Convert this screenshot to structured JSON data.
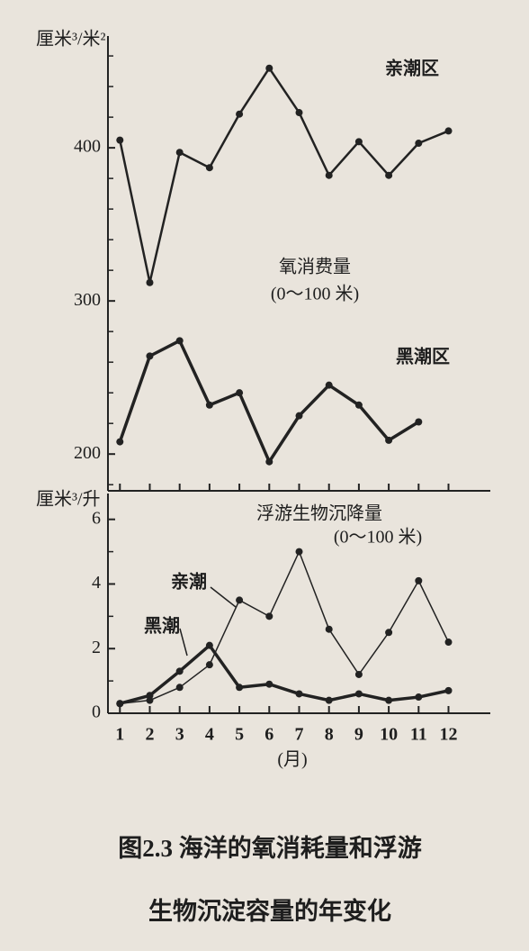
{
  "chart_data": [
    {
      "type": "line",
      "ylabel": "厘米³/米²",
      "title": "氧消费量",
      "subtitle": "(0～100 米)",
      "x": [
        1,
        2,
        3,
        4,
        5,
        6,
        7,
        8,
        9,
        10,
        11,
        12
      ],
      "xlim": [
        0.6,
        13.4
      ],
      "ylim": [
        176,
        473
      ],
      "yticks": [
        200,
        300,
        400
      ],
      "yticks_minor": [
        180,
        220,
        240,
        260,
        280,
        320,
        340,
        360,
        380,
        420,
        440,
        460
      ],
      "series": [
        {
          "name": "亲潮区",
          "color": "#222222",
          "width": 2.5,
          "values": [
            405,
            312,
            397,
            387,
            422,
            452,
            423,
            382,
            404,
            382,
            403,
            411
          ]
        },
        {
          "name": "黑潮区",
          "color": "#222222",
          "width": 3.5,
          "values": [
            208,
            264,
            274,
            232,
            240,
            195,
            225,
            245,
            232,
            209,
            221,
            null
          ]
        }
      ]
    },
    {
      "type": "line",
      "ylabel": "厘米³/升",
      "title": "浮游生物沉降量",
      "subtitle": "(0～100 米)",
      "xlabel": "(月)",
      "x": [
        1,
        2,
        3,
        4,
        5,
        6,
        7,
        8,
        9,
        10,
        11,
        12
      ],
      "xlim": [
        0.6,
        13.4
      ],
      "xticks": [
        1,
        2,
        3,
        4,
        5,
        6,
        7,
        8,
        9,
        10,
        11,
        12
      ],
      "ylim": [
        0,
        6.8
      ],
      "yticks": [
        0,
        2,
        4,
        6
      ],
      "yticks_minor": [
        1,
        3,
        5
      ],
      "series": [
        {
          "name": "亲潮",
          "color": "#222222",
          "width": 1.5,
          "values": [
            0.3,
            0.4,
            0.8,
            1.5,
            3.5,
            3.0,
            5.0,
            2.6,
            1.2,
            2.5,
            4.1,
            2.2
          ]
        },
        {
          "name": "黑潮",
          "color": "#222222",
          "width": 3.5,
          "values": [
            0.3,
            0.55,
            1.3,
            2.1,
            0.8,
            0.9,
            0.6,
            0.4,
            0.6,
            0.4,
            0.5,
            0.7
          ]
        }
      ]
    }
  ],
  "caption": [
    "图2.3  海洋的氧消耗量和浮游",
    "生物沉淀容量的年变化"
  ]
}
